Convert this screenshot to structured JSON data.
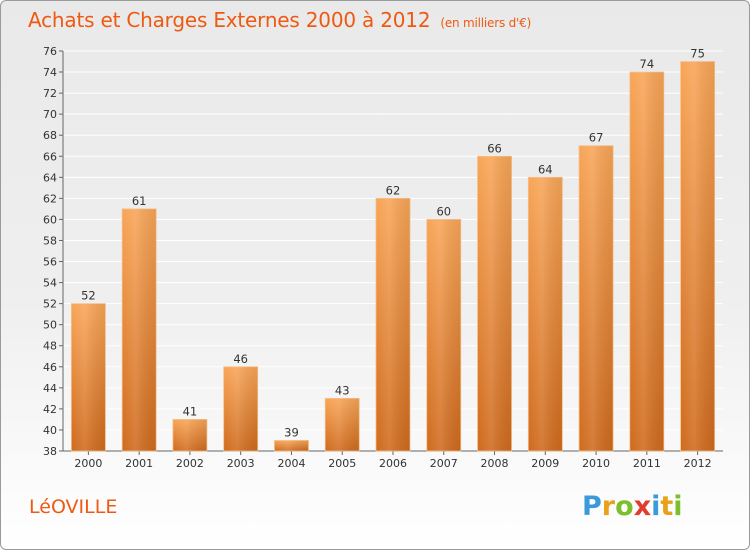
{
  "header": {
    "title": "Achats et Charges Externes 2000 à 2012",
    "subtitle": "(en milliers d'€)"
  },
  "footer": {
    "commune": "LéOVILLE",
    "brand": "Proxiti",
    "brand_letters": [
      {
        "ch": "P",
        "color": "#3b9ad9"
      },
      {
        "ch": "r",
        "color": "#e8a21a"
      },
      {
        "ch": "o",
        "color": "#7bbf2a"
      },
      {
        "ch": "x",
        "color": "#e33b2e"
      },
      {
        "ch": "i",
        "color": "#3b9ad9"
      },
      {
        "ch": "t",
        "color": "#e8a21a"
      },
      {
        "ch": "i",
        "color": "#7bbf2a"
      }
    ]
  },
  "colors": {
    "accent": "#ee5a12",
    "bar_light": "#f8a557",
    "bar_dark": "#cf6a1d",
    "grid": "#ffffff",
    "axis": "#555555"
  },
  "chart_data": {
    "type": "bar",
    "categories": [
      "2000",
      "2001",
      "2002",
      "2003",
      "2004",
      "2005",
      "2006",
      "2007",
      "2008",
      "2009",
      "2010",
      "2011",
      "2012"
    ],
    "values": [
      52,
      61,
      41,
      46,
      39,
      43,
      62,
      60,
      66,
      64,
      67,
      74,
      75
    ],
    "title": "Achats et Charges Externes 2000 à 2012",
    "subtitle": "(en milliers d'€)",
    "xlabel": "",
    "ylabel": "",
    "ylim": [
      38,
      76
    ],
    "yticks": [
      38,
      40,
      42,
      44,
      46,
      48,
      50,
      52,
      54,
      56,
      58,
      60,
      62,
      64,
      66,
      68,
      70,
      72,
      74,
      76
    ],
    "grid": true,
    "data_labels": true
  }
}
